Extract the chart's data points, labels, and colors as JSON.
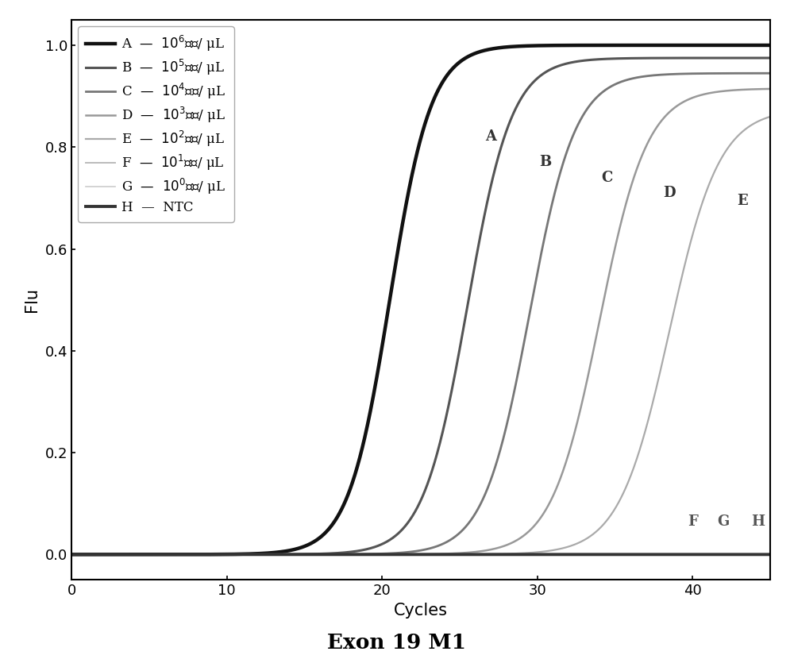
{
  "title": "Exon 19 M1",
  "xlabel": "Cycles",
  "ylabel": "Flu",
  "xlim": [
    0,
    45
  ],
  "ylim": [
    -0.05,
    1.05
  ],
  "xticks": [
    0,
    10,
    20,
    30,
    40
  ],
  "yticks": [
    0.0,
    0.2,
    0.4,
    0.6,
    0.8,
    1.0
  ],
  "curves": [
    {
      "label": "A",
      "midpoint": 20.5,
      "steepness": 0.75,
      "ymax": 1.0,
      "color": "#111111",
      "linewidth": 3.2,
      "tag_x": 27.0,
      "tag_y": 0.82
    },
    {
      "label": "B",
      "midpoint": 25.5,
      "steepness": 0.7,
      "ymax": 0.975,
      "color": "#555555",
      "linewidth": 2.2,
      "tag_x": 30.5,
      "tag_y": 0.77
    },
    {
      "label": "C",
      "midpoint": 29.5,
      "steepness": 0.68,
      "ymax": 0.945,
      "color": "#777777",
      "linewidth": 2.0,
      "tag_x": 34.5,
      "tag_y": 0.74
    },
    {
      "label": "D",
      "midpoint": 34.0,
      "steepness": 0.65,
      "ymax": 0.915,
      "color": "#999999",
      "linewidth": 1.8,
      "tag_x": 38.5,
      "tag_y": 0.71
    },
    {
      "label": "E",
      "midpoint": 38.5,
      "steepness": 0.62,
      "ymax": 0.875,
      "color": "#aaaaaa",
      "linewidth": 1.6,
      "tag_x": 43.2,
      "tag_y": 0.695
    },
    {
      "label": "F",
      "midpoint": 999,
      "steepness": 0.7,
      "ymax": 0.0,
      "color": "#bbbbbb",
      "linewidth": 1.4,
      "tag_x": 40.0,
      "tag_y": 0.065
    },
    {
      "label": "G",
      "midpoint": 999,
      "steepness": 0.7,
      "ymax": 0.0,
      "color": "#cccccc",
      "linewidth": 1.2,
      "tag_x": 42.0,
      "tag_y": 0.065
    },
    {
      "label": "H",
      "midpoint": 999,
      "steepness": 0.7,
      "ymax": 0.0,
      "color": "#333333",
      "linewidth": 2.8,
      "tag_x": 44.2,
      "tag_y": 0.065
    }
  ],
  "legend_entries": [
    {
      "label_prefix": "A",
      "exponent": "6",
      "color": "#111111",
      "linewidth": 3.2
    },
    {
      "label_prefix": "B",
      "exponent": "5",
      "color": "#555555",
      "linewidth": 2.2
    },
    {
      "label_prefix": "C",
      "exponent": "4",
      "color": "#777777",
      "linewidth": 2.0
    },
    {
      "label_prefix": "D",
      "exponent": "3",
      "color": "#999999",
      "linewidth": 1.8
    },
    {
      "label_prefix": "E",
      "exponent": "2",
      "color": "#aaaaaa",
      "linewidth": 1.6
    },
    {
      "label_prefix": "F",
      "exponent": "1",
      "color": "#bbbbbb",
      "linewidth": 1.4
    },
    {
      "label_prefix": "G",
      "exponent": "0",
      "color": "#cccccc",
      "linewidth": 1.2
    },
    {
      "label_prefix": "H",
      "exponent": "NTC",
      "color": "#333333",
      "linewidth": 2.8
    }
  ],
  "background_color": "#ffffff",
  "tag_fontsize": 13,
  "axis_fontsize": 15,
  "title_fontsize": 19,
  "legend_fontsize": 12
}
